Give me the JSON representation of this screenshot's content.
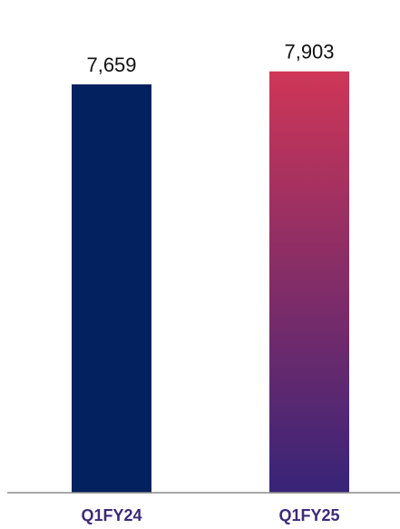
{
  "chart_data": {
    "type": "bar",
    "title": "",
    "xlabel": "",
    "ylabel": "",
    "categories": [
      "Q1FY24",
      "Q1FY25"
    ],
    "values": [
      7659,
      7903
    ],
    "value_labels": [
      "7,659",
      "7,903"
    ],
    "ylim": [
      0,
      8000
    ],
    "grid": false,
    "legend": "none"
  },
  "colors": {
    "bar_q1fy24": "#03215e",
    "bar_q1fy25_top": "#cf3657",
    "bar_q1fy25_bottom": "#372478",
    "category_text": "#3d2a78",
    "axis_line": "#8c8c8c"
  }
}
